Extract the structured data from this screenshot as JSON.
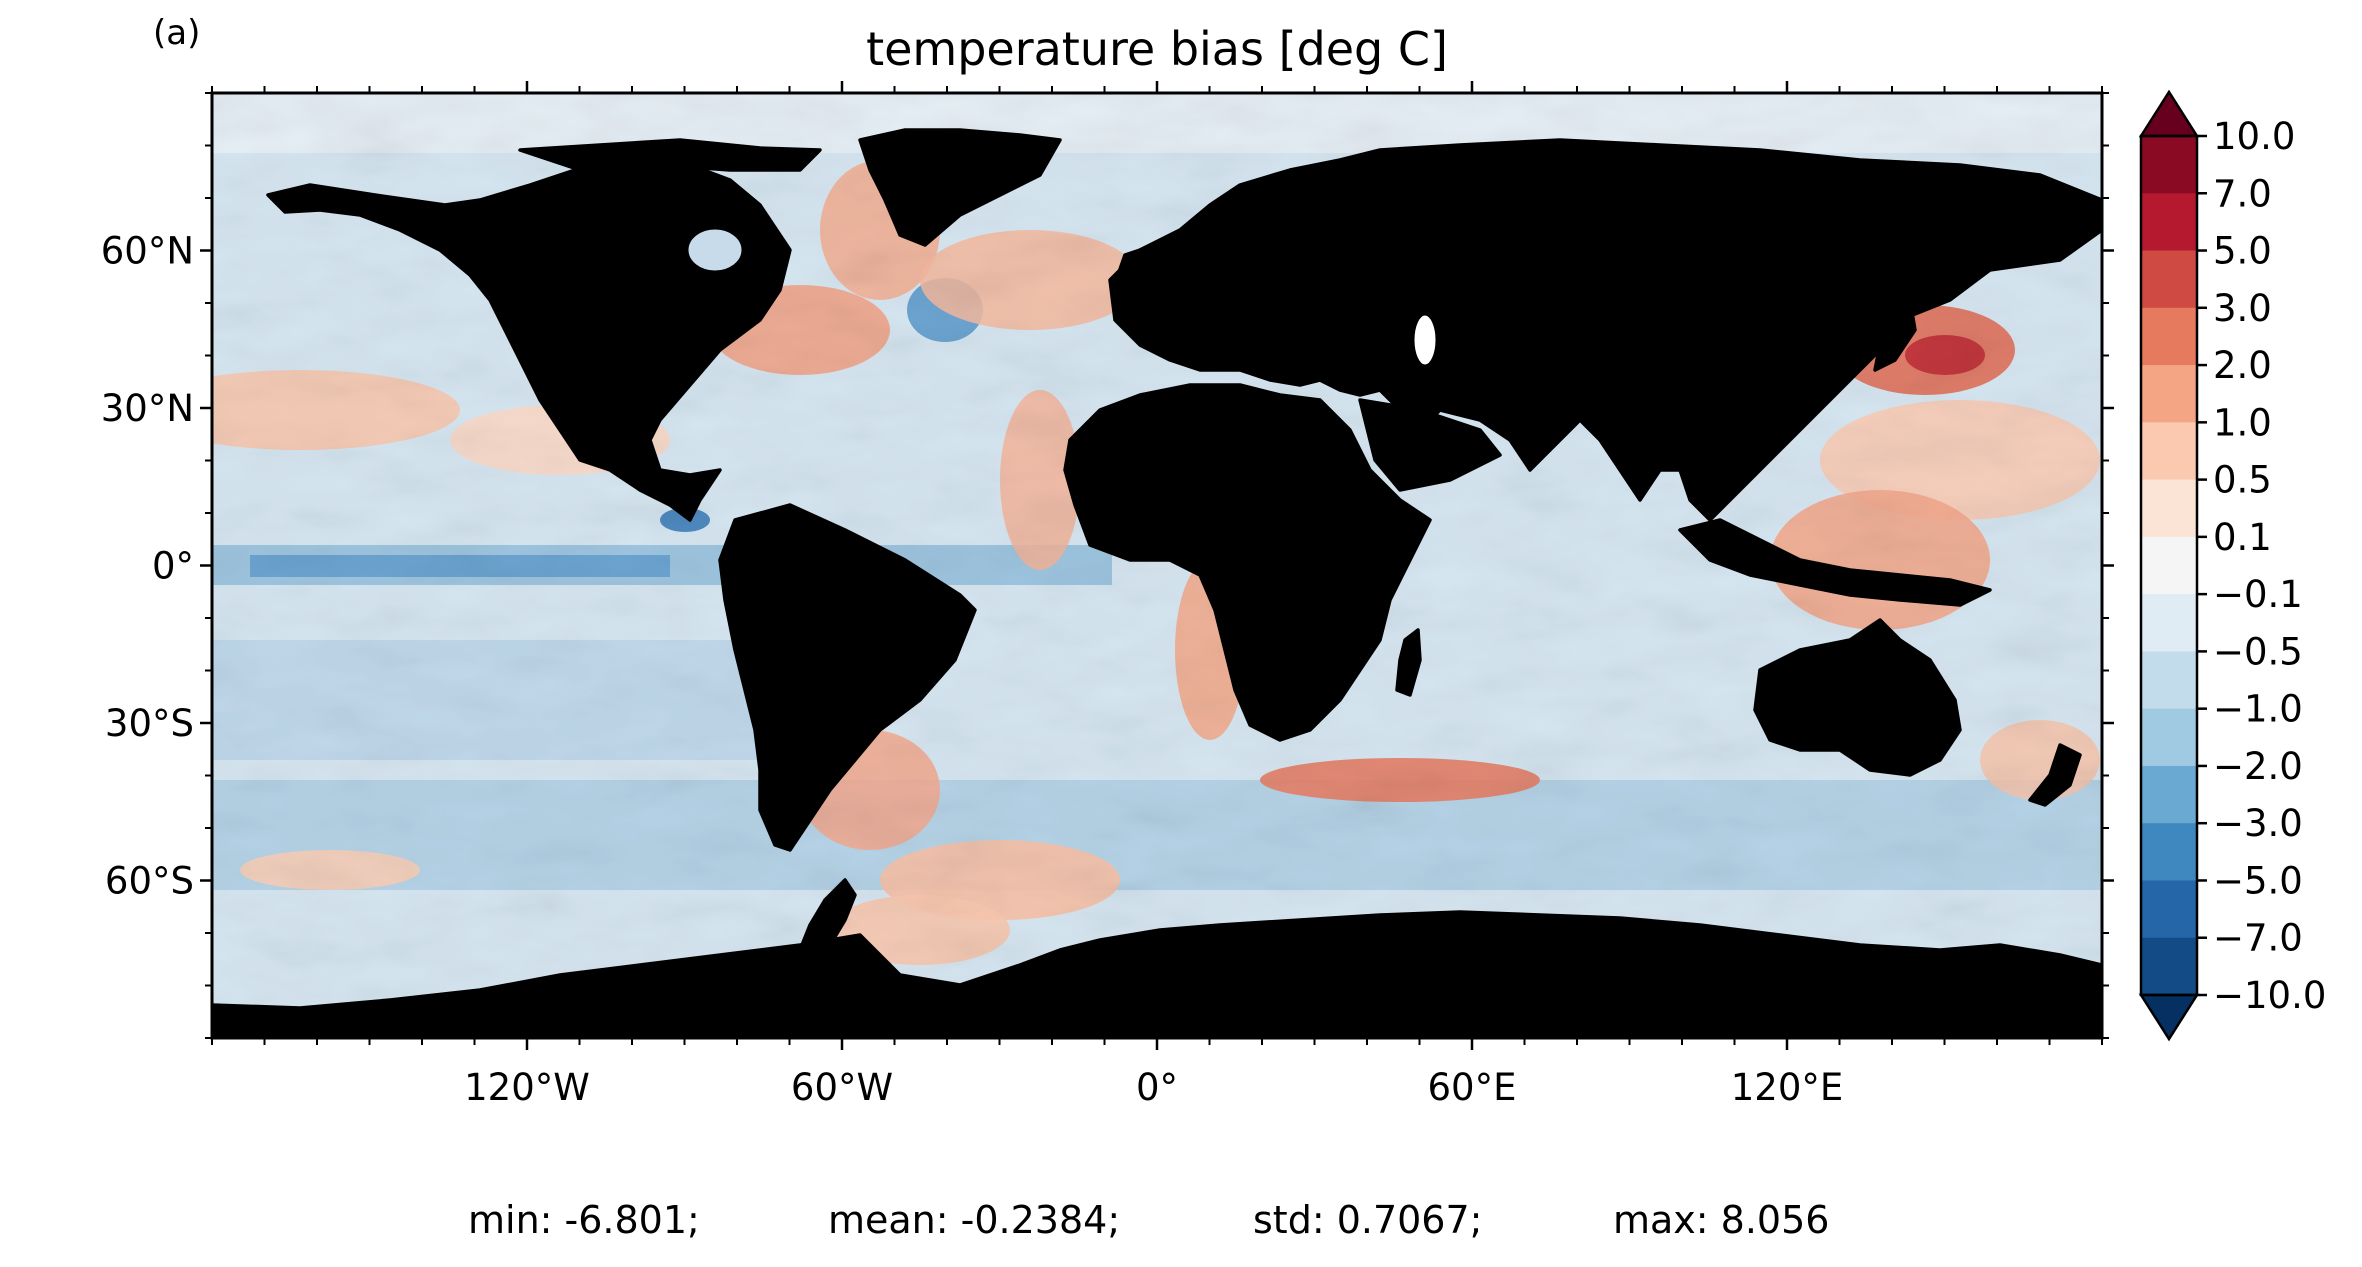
{
  "panel_label": "(a)",
  "title": "temperature bias [deg C]",
  "stats": {
    "min": "min: -6.801;",
    "mean": "mean: -0.2384;",
    "std": "std: 0.7067;",
    "max": "max: 8.056"
  },
  "colors": {
    "land": "#b0b0b0",
    "coastline": "#000000"
  },
  "map": {
    "projection": "PlateCarree",
    "lon_range": [
      -180,
      180
    ],
    "lat_range": [
      -90,
      90
    ],
    "xticks": [
      {
        "lon": -120,
        "label": "120°W"
      },
      {
        "lon": -60,
        "label": "60°W"
      },
      {
        "lon": 0,
        "label": "0°"
      },
      {
        "lon": 60,
        "label": "60°E"
      },
      {
        "lon": 120,
        "label": "120°E"
      }
    ],
    "yticks": [
      {
        "lat": 60,
        "label": "60°N"
      },
      {
        "lat": 30,
        "label": "30°N"
      },
      {
        "lat": 0,
        "label": "0°"
      },
      {
        "lat": -30,
        "label": "30°S"
      },
      {
        "lat": -60,
        "label": "60°S"
      }
    ]
  },
  "colorbar": {
    "extend": "both",
    "levels": [
      {
        "label": "10.0",
        "value": 10.0
      },
      {
        "label": "7.0",
        "value": 7.0
      },
      {
        "label": "5.0",
        "value": 5.0
      },
      {
        "label": "3.0",
        "value": 3.0
      },
      {
        "label": "2.0",
        "value": 2.0
      },
      {
        "label": "1.0",
        "value": 1.0
      },
      {
        "label": "0.5",
        "value": 0.5
      },
      {
        "label": "0.1",
        "value": 0.1
      },
      {
        "label": "−0.1",
        "value": -0.1
      },
      {
        "label": "−0.5",
        "value": -0.5
      },
      {
        "label": "−1.0",
        "value": -1.0
      },
      {
        "label": "−2.0",
        "value": -2.0
      },
      {
        "label": "−3.0",
        "value": -3.0
      },
      {
        "label": "−5.0",
        "value": -5.0
      },
      {
        "label": "−7.0",
        "value": -7.0
      },
      {
        "label": "−10.0",
        "value": -10.0
      }
    ],
    "bin_colors_top_to_bottom": [
      "#8b0a23",
      "#b5192f",
      "#cf4a43",
      "#e57a5f",
      "#f3a584",
      "#fac9b0",
      "#fbe4d6",
      "#f5f5f5",
      "#dfecf4",
      "#c3dcec",
      "#9fcae1",
      "#6aaad2",
      "#3f88bf",
      "#2566a8",
      "#134b86"
    ],
    "over_color": "#67001f",
    "under_color": "#053061"
  }
}
